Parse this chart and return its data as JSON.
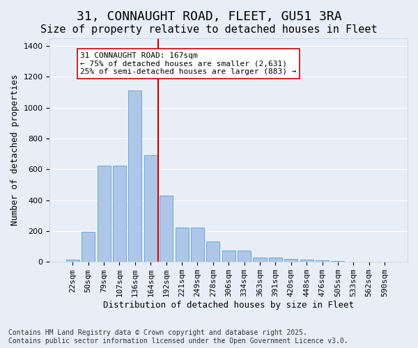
{
  "title_line1": "31, CONNAUGHT ROAD, FLEET, GU51 3RA",
  "title_line2": "Size of property relative to detached houses in Fleet",
  "xlabel": "Distribution of detached houses by size in Fleet",
  "ylabel": "Number of detached properties",
  "bar_color": "#aec6e8",
  "bar_edge_color": "#5a9fd4",
  "background_color": "#e8eef8",
  "grid_color": "#ffffff",
  "categories": [
    "22sqm",
    "50sqm",
    "79sqm",
    "107sqm",
    "136sqm",
    "164sqm",
    "192sqm",
    "221sqm",
    "249sqm",
    "278sqm",
    "306sqm",
    "334sqm",
    "363sqm",
    "391sqm",
    "420sqm",
    "448sqm",
    "476sqm",
    "505sqm",
    "533sqm",
    "562sqm",
    "590sqm"
  ],
  "values": [
    15,
    195,
    625,
    625,
    1110,
    690,
    430,
    220,
    220,
    130,
    75,
    75,
    30,
    30,
    20,
    15,
    10,
    5,
    3,
    2,
    2
  ],
  "ylim": [
    0,
    1450
  ],
  "yticks": [
    0,
    200,
    400,
    600,
    800,
    1000,
    1200,
    1400
  ],
  "vline_x": 5.5,
  "vline_color": "#cc0000",
  "annotation_text": "31 CONNAUGHT ROAD: 167sqm\n← 75% of detached houses are smaller (2,631)\n25% of semi-detached houses are larger (883) →",
  "annotation_box_color": "#ffffff",
  "annotation_box_edge": "#cc0000",
  "footnote": "Contains HM Land Registry data © Crown copyright and database right 2025.\nContains public sector information licensed under the Open Government Licence v3.0.",
  "title_fontsize": 13,
  "subtitle_fontsize": 11,
  "label_fontsize": 9,
  "tick_fontsize": 8,
  "annotation_fontsize": 8
}
